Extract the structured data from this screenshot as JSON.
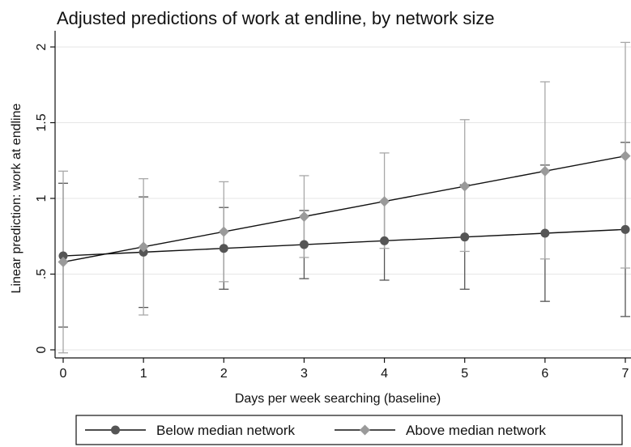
{
  "chart_data": {
    "type": "line",
    "title": "Adjusted predictions of work at endline, by network size",
    "xlabel": "Days per week searching (baseline)",
    "ylabel": "Linear prediction: work at endline",
    "x": [
      0,
      1,
      2,
      3,
      4,
      5,
      6,
      7
    ],
    "x_tick_labels": [
      "0",
      "1",
      "2",
      "3",
      "4",
      "5",
      "6",
      "7"
    ],
    "y_ticks": [
      0,
      0.5,
      1,
      1.5,
      2
    ],
    "y_tick_labels": [
      "0",
      ".5",
      "1",
      "1.5",
      "2"
    ],
    "xlim": [
      -0.1,
      7.1
    ],
    "ylim": [
      -0.05,
      2.05
    ],
    "grid": "horizontal",
    "legend_position": "bottom",
    "series": [
      {
        "name": "Below median network",
        "marker": "circle",
        "color": "#555555",
        "ci_color": "#555555",
        "values": [
          0.62,
          0.645,
          0.67,
          0.695,
          0.72,
          0.745,
          0.77,
          0.795
        ],
        "ci_low": [
          0.15,
          0.28,
          0.4,
          0.47,
          0.46,
          0.4,
          0.32,
          0.22
        ],
        "ci_high": [
          1.1,
          1.01,
          0.94,
          0.92,
          0.98,
          1.09,
          1.22,
          1.37
        ]
      },
      {
        "name": "Above median network",
        "marker": "diamond",
        "color": "#9a9a9a",
        "ci_color": "#a8a8a8",
        "values": [
          0.58,
          0.68,
          0.78,
          0.88,
          0.98,
          1.08,
          1.18,
          1.28
        ],
        "ci_low": [
          -0.02,
          0.23,
          0.45,
          0.61,
          0.67,
          0.65,
          0.6,
          0.54
        ],
        "ci_high": [
          1.18,
          1.13,
          1.11,
          1.15,
          1.3,
          1.52,
          1.77,
          2.03
        ]
      }
    ]
  }
}
